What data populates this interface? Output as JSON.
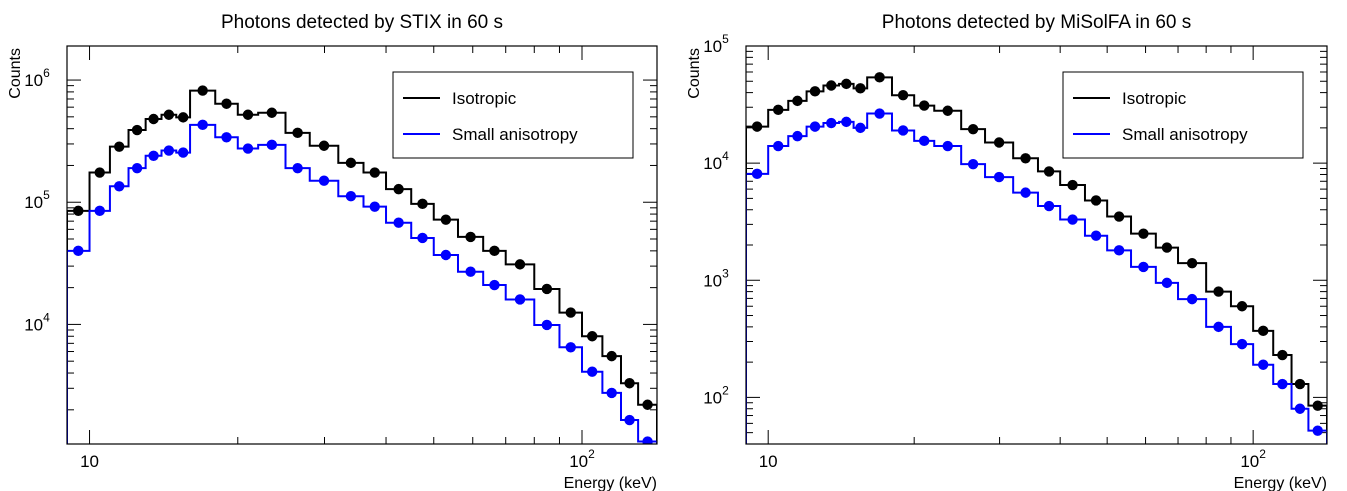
{
  "chart_data": [
    {
      "type": "line",
      "title": "Photons detected by STIX in 60 s",
      "xlabel": "Energy (keV)",
      "ylabel": "Counts",
      "x_scale": "log",
      "y_scale": "log",
      "xlim": [
        9,
        142
      ],
      "ylim": [
        1050,
        1900000
      ],
      "x_ticks": [
        {
          "value": 10,
          "label": "10"
        },
        {
          "value": 100,
          "label": "10",
          "sup": "2"
        }
      ],
      "y_ticks": [
        {
          "value": 10000,
          "label": "10",
          "sup": "4"
        },
        {
          "value": 100000,
          "label": "10",
          "sup": "5"
        },
        {
          "value": 1000000,
          "label": "10",
          "sup": "6"
        }
      ],
      "legend_position": "top-right",
      "edges": [
        9,
        10,
        11,
        12,
        13,
        14,
        15,
        16,
        18,
        20,
        22,
        25,
        28,
        32,
        36,
        40,
        45,
        50,
        56,
        63,
        70,
        80,
        90,
        100,
        110,
        120,
        130,
        142
      ],
      "series": [
        {
          "name": "Isotropic",
          "color": "#000000",
          "values": [
            85000,
            175000,
            285000,
            390000,
            480000,
            520000,
            495000,
            820000,
            640000,
            520000,
            540000,
            370000,
            290000,
            210000,
            175000,
            128000,
            97000,
            72000,
            52000,
            40000,
            31000,
            19500,
            12500,
            8000,
            5500,
            3300,
            2200
          ]
        },
        {
          "name": "Small anisotropy",
          "color": "#0000ff",
          "values": [
            40000,
            85000,
            135000,
            190000,
            240000,
            265000,
            255000,
            430000,
            340000,
            275000,
            295000,
            190000,
            150000,
            112000,
            92000,
            68000,
            51000,
            37000,
            27000,
            21000,
            16000,
            9900,
            6500,
            4100,
            2750,
            1650,
            1100
          ]
        }
      ]
    },
    {
      "type": "line",
      "title": "Photons detected by MiSolFA in 60 s",
      "xlabel": "Energy (keV)",
      "ylabel": "Counts",
      "x_scale": "log",
      "y_scale": "log",
      "xlim": [
        9,
        142
      ],
      "ylim": [
        40,
        100000
      ],
      "x_ticks": [
        {
          "value": 10,
          "label": "10"
        },
        {
          "value": 100,
          "label": "10",
          "sup": "2"
        }
      ],
      "y_ticks": [
        {
          "value": 100,
          "label": "10",
          "sup": "2"
        },
        {
          "value": 1000,
          "label": "10",
          "sup": "3"
        },
        {
          "value": 10000,
          "label": "10",
          "sup": "4"
        },
        {
          "value": 100000,
          "label": "10",
          "sup": "5"
        }
      ],
      "legend_position": "top-right",
      "edges": [
        9,
        10,
        11,
        12,
        13,
        14,
        15,
        16,
        18,
        20,
        22,
        25,
        28,
        32,
        36,
        40,
        45,
        50,
        56,
        63,
        70,
        80,
        90,
        100,
        110,
        120,
        130,
        142
      ],
      "series": [
        {
          "name": "Isotropic",
          "color": "#000000",
          "values": [
            20500,
            28500,
            34000,
            41000,
            46000,
            47500,
            43500,
            54000,
            38000,
            31000,
            28000,
            19500,
            15000,
            11000,
            8500,
            6500,
            4800,
            3500,
            2500,
            1900,
            1400,
            800,
            600,
            370,
            230,
            130,
            85
          ]
        },
        {
          "name": "Small anisotropy",
          "color": "#0000ff",
          "values": [
            8100,
            14000,
            17000,
            20500,
            22000,
            22500,
            20000,
            26500,
            19000,
            15500,
            14000,
            9800,
            7600,
            5600,
            4300,
            3300,
            2400,
            1800,
            1300,
            950,
            690,
            400,
            285,
            190,
            130,
            80,
            52
          ]
        }
      ]
    }
  ]
}
